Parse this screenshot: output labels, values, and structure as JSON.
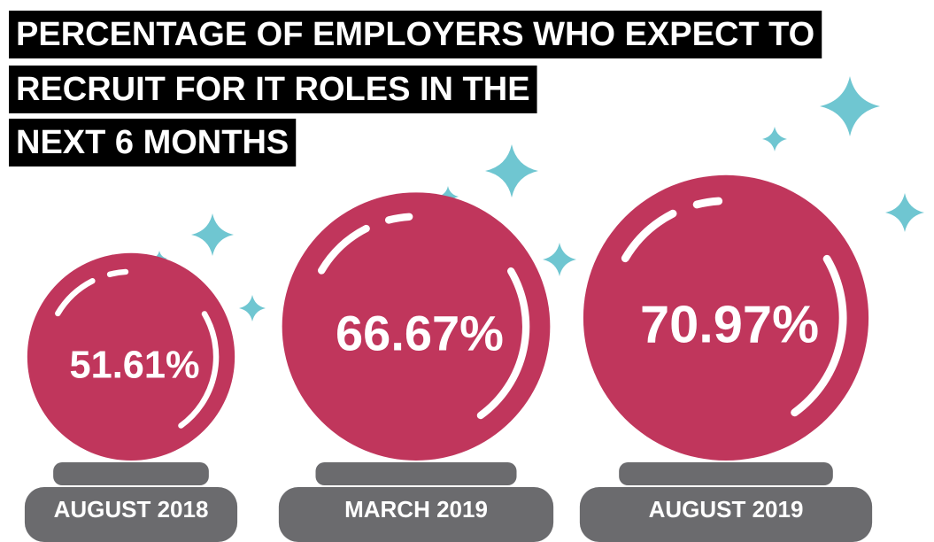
{
  "chart_data": {
    "type": "bubble",
    "title": [
      "PERCENTAGE OF EMPLOYERS WHO EXPECT TO",
      "RECRUIT FOR IT ROLES IN THE",
      "NEXT 6 MONTHS"
    ],
    "categories": [
      "AUGUST 2018",
      "MARCH 2019",
      "AUGUST 2019"
    ],
    "values": [
      51.61,
      66.67,
      70.97
    ],
    "value_labels": [
      "51.61%",
      "66.67%",
      "70.97%"
    ],
    "color": "#c0365c"
  }
}
